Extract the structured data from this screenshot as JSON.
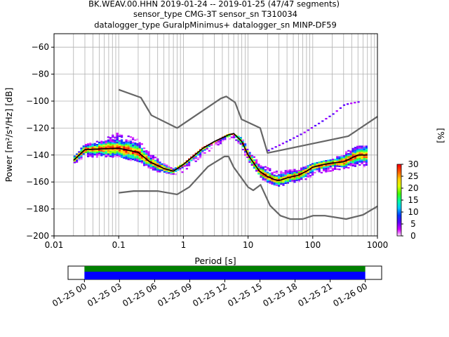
{
  "chart_data": {
    "type": "heatmap",
    "title_lines": [
      "BK.WEAV.00.HHN   2019-01-24 -- 2019-01-25  (47/47 segments)",
      "sensor_type CMG-3T sensor_sn T310034",
      "datalogger_type GuralpMinimus+ datalogger_sn MINP-DF59"
    ],
    "xlabel": "Period [s]",
    "ylabel": "Power [m²/s⁴/Hz] [dB]",
    "x_scale": "log",
    "xlim": [
      0.01,
      1000
    ],
    "ylim": [
      -200,
      -50
    ],
    "x_ticks": [
      0.01,
      0.1,
      1,
      10,
      100,
      1000
    ],
    "x_tick_labels": [
      "0.01",
      "0.1",
      "1",
      "10",
      "100",
      "1000"
    ],
    "y_ticks": [
      -200,
      -180,
      -160,
      -140,
      -120,
      -100,
      -80,
      -60
    ],
    "grid": true,
    "colorbar": {
      "label": "[%]",
      "ticks": [
        0,
        5,
        10,
        15,
        20,
        25,
        30
      ],
      "range": [
        0,
        30
      ],
      "colors": [
        "#ffffff",
        "#d400ff",
        "#5a00ff",
        "#0038ff",
        "#00c8ff",
        "#00ffa0",
        "#40ff00",
        "#d8ff00",
        "#ffd000",
        "#ff6000",
        "#ff0000"
      ]
    },
    "series": [
      {
        "name": "",
        "role": "high noise model",
        "color": "#666666",
        "x": [
          0.1,
          0.22,
          0.32,
          0.8,
          3.8,
          4.6,
          6.3,
          7.9,
          15.4,
          20,
          354.8,
          1000
        ],
        "y": [
          -91.5,
          -97.4,
          -110.5,
          -120,
          -98,
          -96.5,
          -101,
          -113.5,
          -120,
          -138.5,
          -126,
          -111.5
        ]
      },
      {
        "name": "",
        "role": "low noise model",
        "color": "#666666",
        "x": [
          0.1,
          0.17,
          0.4,
          0.8,
          1.24,
          2.4,
          4.3,
          5,
          6,
          10,
          12,
          15.6,
          21.9,
          31.6,
          45,
          70,
          101,
          154,
          328,
          600,
          1000
        ],
        "y": [
          -168,
          -166.7,
          -166.7,
          -169.2,
          -163.7,
          -148.6,
          -141.1,
          -141.1,
          -149,
          -163.8,
          -166.2,
          -162.1,
          -177.5,
          -185,
          -187.5,
          -187.5,
          -185,
          -185,
          -187.5,
          -184.4,
          -178
        ]
      },
      {
        "name": "",
        "role": "mean",
        "color": "#000000",
        "x": [
          0.02,
          0.03,
          0.05,
          0.1,
          0.2,
          0.3,
          0.5,
          0.7,
          1,
          2,
          3,
          5,
          6,
          8,
          10,
          15,
          20,
          25,
          30,
          40,
          60,
          80,
          100,
          150,
          200,
          300,
          500,
          700
        ],
        "y": [
          -144,
          -136,
          -135.5,
          -135,
          -138,
          -145,
          -150,
          -152,
          -147,
          -135,
          -130,
          -125,
          -124,
          -130,
          -140,
          -152,
          -156,
          -158,
          -159,
          -157,
          -155,
          -152,
          -149,
          -147,
          -146,
          -145,
          -140,
          -140
        ]
      }
    ],
    "histogram": {
      "xlim": [
        0.02,
        700
      ],
      "mode_curve": {
        "x": [
          0.02,
          0.03,
          0.05,
          0.1,
          0.2,
          0.3,
          0.5,
          0.7,
          1,
          2,
          3,
          5,
          6,
          8,
          10,
          15,
          20,
          25,
          30,
          40,
          60,
          80,
          100,
          150,
          200,
          300,
          500,
          700
        ],
        "y": [
          -144,
          -136,
          -135.5,
          -135,
          -138,
          -145,
          -150,
          -152,
          -147,
          -135,
          -130,
          -125,
          -124,
          -130,
          -140,
          -152,
          -156,
          -158,
          -159,
          -157,
          -155,
          -152,
          -149,
          -147,
          -146,
          -145,
          -140,
          -140
        ]
      },
      "lower_edge": {
        "x": [
          0.02,
          0.03,
          0.05,
          0.1,
          0.2,
          0.3,
          0.5,
          0.7,
          1,
          2,
          3,
          5,
          6,
          8,
          10,
          15,
          20,
          25,
          30,
          40,
          60,
          80,
          100,
          150,
          200,
          300,
          500,
          700
        ],
        "y": [
          -146,
          -141,
          -141,
          -141,
          -145,
          -150,
          -153,
          -155,
          -152,
          -140,
          -134,
          -128,
          -127,
          -134,
          -144,
          -156,
          -160,
          -162,
          -163,
          -161,
          -160,
          -158,
          -155,
          -153,
          -151,
          -150,
          -148,
          -148
        ]
      },
      "upper_edge": {
        "x": [
          0.02,
          0.03,
          0.05,
          0.1,
          0.2,
          0.3,
          0.5,
          0.7,
          1,
          2,
          3,
          5,
          6,
          8,
          10,
          15,
          20,
          25,
          30,
          40,
          60,
          80,
          100,
          150,
          200,
          300,
          500,
          700
        ],
        "y": [
          -140,
          -132,
          -129,
          -123,
          -128,
          -138,
          -146,
          -150,
          -146,
          -134,
          -130,
          -124,
          -124,
          -127,
          -135,
          -146,
          -149,
          -151,
          -152,
          -151,
          -150,
          -148,
          -146,
          -144,
          -143,
          -138,
          -133,
          -133
        ]
      },
      "outlier_trend": {
        "x": [
          20,
          40,
          70,
          120,
          200,
          300,
          500
        ],
        "y": [
          -136,
          -129,
          -123,
          -116,
          -109,
          -102,
          -100
        ]
      }
    },
    "timeline": {
      "ticks": [
        "01-25 00",
        "01-25 03",
        "01-25 06",
        "01-25 09",
        "01-25 12",
        "01-25 15",
        "01-25 18",
        "01-25 21",
        "01-26 00"
      ],
      "range_hours": [
        -1.4,
        25.4
      ],
      "coverage_hours": [
        0,
        24
      ],
      "colors": {
        "data": "#0000ff",
        "gaps": "#008000"
      }
    }
  }
}
